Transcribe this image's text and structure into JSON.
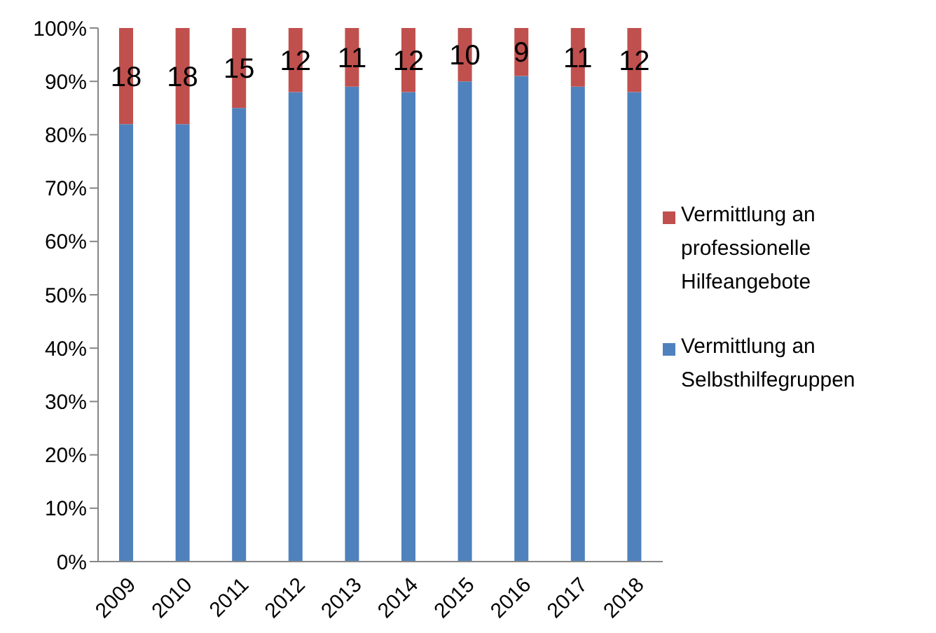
{
  "chart_data": {
    "type": "bar",
    "stacked": true,
    "categories": [
      "2009",
      "2010",
      "2011",
      "2012",
      "2013",
      "2014",
      "2015",
      "2016",
      "2017",
      "2018"
    ],
    "series": [
      {
        "name": "Vermittlung an Selbsthilfegruppen",
        "color": "#4f81bd",
        "values": [
          82,
          82,
          85,
          88,
          89,
          88,
          90,
          91,
          89,
          88
        ]
      },
      {
        "name": "Vermittlung an professionelle Hilfeangebote",
        "color": "#c0504d",
        "values": [
          18,
          18,
          15,
          12,
          11,
          12,
          10,
          9,
          11,
          12
        ],
        "value_labels": [
          "18",
          "18",
          "15",
          "12",
          "11",
          "12",
          "10",
          "9",
          "11",
          "12"
        ]
      }
    ],
    "ylim": [
      0,
      100
    ],
    "yticks": [
      {
        "value": 0,
        "label": "0%"
      },
      {
        "value": 10,
        "label": "10%"
      },
      {
        "value": 20,
        "label": "20%"
      },
      {
        "value": 30,
        "label": "30%"
      },
      {
        "value": 40,
        "label": "40%"
      },
      {
        "value": 50,
        "label": "50%"
      },
      {
        "value": 60,
        "label": "60%"
      },
      {
        "value": 70,
        "label": "70%"
      },
      {
        "value": 80,
        "label": "80%"
      },
      {
        "value": 90,
        "label": "90%"
      },
      {
        "value": 100,
        "label": "100%"
      }
    ],
    "grid": false,
    "legend": "right"
  }
}
